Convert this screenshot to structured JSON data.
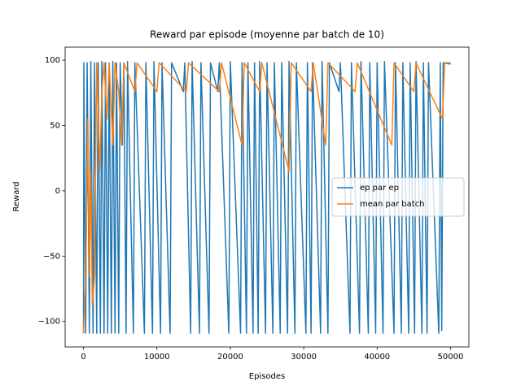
{
  "chart_data": {
    "type": "line",
    "title": "Reward par episode (moyenne par batch de 10)",
    "x_label": "Episodes",
    "y_label": "Reward",
    "xlim": [
      -2500,
      52500
    ],
    "ylim": [
      -119.5,
      110
    ],
    "xticks": [
      0,
      10000,
      20000,
      30000,
      40000,
      50000
    ],
    "yticks": [
      {
        "value": -100,
        "label": "−100"
      },
      {
        "value": -50,
        "label": "−50"
      },
      0,
      50,
      100
    ],
    "grid": false,
    "legend": "center right",
    "series": [
      {
        "name": "ep par ep",
        "color": "#1f77b4",
        "x": [
          0,
          50,
          300,
          500,
          800,
          1000,
          1300,
          1500,
          1800,
          2000,
          2300,
          2500,
          2800,
          3000,
          3300,
          3500,
          3800,
          4000,
          4300,
          4500,
          4800,
          5000,
          5300,
          5500,
          5800,
          6000,
          6800,
          7000,
          8300,
          8500,
          9400,
          9600,
          10500,
          10700,
          11800,
          12000,
          13600,
          13800,
          14600,
          14800,
          15800,
          16000,
          17100,
          17300,
          18300,
          18500,
          19800,
          20000,
          21400,
          21600,
          22200,
          22400,
          23100,
          23300,
          23800,
          24000,
          24800,
          25000,
          25800,
          26000,
          26800,
          27000,
          27800,
          28000,
          28800,
          29000,
          30300,
          30500,
          31000,
          31200,
          32300,
          32500,
          33300,
          33500,
          34800,
          35000,
          36300,
          36500,
          37600,
          37800,
          38800,
          39000,
          39800,
          40000,
          40800,
          41000,
          42300,
          42500,
          43300,
          43500,
          44300,
          44500,
          45100,
          45300,
          46100,
          46300,
          46800,
          47000,
          48400,
          48600,
          48800,
          49000,
          50000
        ],
        "values": [
          -109,
          98,
          -109,
          98,
          -109,
          99,
          -109,
          98,
          -109,
          98,
          -109,
          99,
          -109,
          98,
          -109,
          98,
          -109,
          99,
          -109,
          98,
          -109,
          98,
          35,
          98,
          -109,
          99,
          -109,
          98,
          -109,
          98,
          -109,
          99,
          -109,
          98,
          -109,
          98,
          76,
          98,
          -109,
          99,
          -109,
          98,
          -109,
          98,
          76,
          98,
          -109,
          99,
          -109,
          98,
          -109,
          98,
          -109,
          98,
          -109,
          99,
          -109,
          98,
          -109,
          98,
          -109,
          98,
          -109,
          99,
          -109,
          98,
          -109,
          98,
          -109,
          98,
          -109,
          99,
          -109,
          98,
          76,
          98,
          -109,
          98,
          -109,
          99,
          -109,
          98,
          -109,
          98,
          -109,
          99,
          -109,
          98,
          -109,
          98,
          -109,
          98,
          -109,
          99,
          -109,
          98,
          -109,
          98,
          -109,
          98,
          -107,
          98,
          97
        ]
      },
      {
        "name": "mean par batch",
        "color": "#ff7f0e",
        "x": [
          0,
          300,
          600,
          800,
          1000,
          1200,
          1500,
          1800,
          2200,
          2500,
          2800,
          3200,
          3500,
          4000,
          4300,
          4800,
          5200,
          5500,
          7000,
          7300,
          10000,
          10300,
          14000,
          14300,
          18500,
          18800,
          21600,
          21900,
          24000,
          24300,
          28000,
          28300,
          31000,
          31300,
          33000,
          33300,
          37000,
          37300,
          42000,
          42300,
          45000,
          45300,
          48900,
          49200,
          50000
        ],
        "values": [
          -109,
          -66,
          55,
          -66,
          15,
          -88,
          -66,
          98,
          15,
          75,
          98,
          55,
          98,
          35,
          98,
          76,
          35,
          98,
          76,
          98,
          76,
          98,
          76,
          98,
          76,
          98,
          35,
          98,
          76,
          98,
          15,
          98,
          76,
          98,
          35,
          98,
          76,
          98,
          35,
          98,
          76,
          98,
          55,
          98,
          98
        ]
      }
    ]
  }
}
